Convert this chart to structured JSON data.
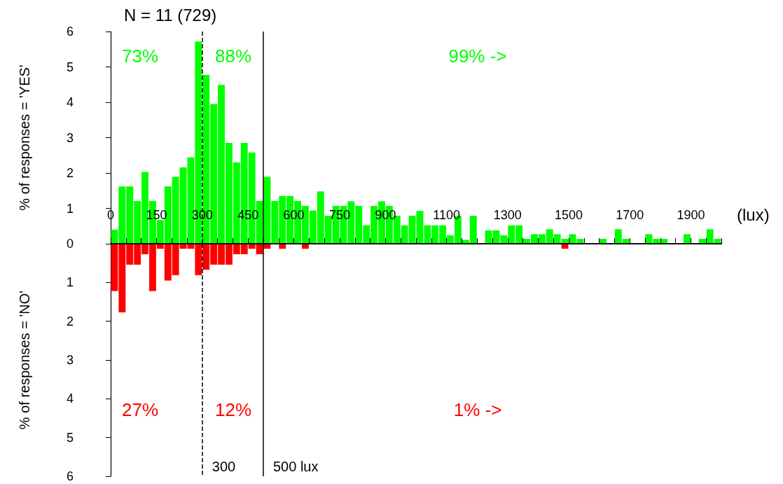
{
  "chart_data": [
    {
      "type": "histogram",
      "title": "N = 11 (729)",
      "ylabel": "% of responses = 'YES'",
      "xlabel": "(lux)",
      "bins": [
        0,
        25,
        50,
        75,
        100,
        125,
        150,
        175,
        200,
        225,
        250,
        275,
        300,
        325,
        350,
        375,
        400,
        425,
        450,
        475,
        500,
        525,
        550,
        575,
        600,
        625,
        650,
        675,
        700,
        725,
        750,
        775,
        800,
        825,
        850,
        875,
        900,
        925,
        950,
        975,
        1000,
        1025,
        1050,
        1075,
        1100,
        1125,
        1150,
        1175,
        1200,
        1225,
        1250,
        1275,
        1300,
        1325,
        1350,
        1375,
        1400,
        1425,
        1450,
        1475,
        1500,
        1525,
        1550,
        1575,
        1600,
        1625,
        1650,
        1675,
        1700,
        1725,
        1750,
        1775,
        1800,
        1825,
        1850,
        1875,
        1900,
        1925,
        1950,
        1975,
        2000
      ],
      "series": [
        {
          "color": "#00ff00",
          "values": [
            0.4,
            1.62,
            1.62,
            1.21,
            2.03,
            1.21,
            0.67,
            1.62,
            1.89,
            2.16,
            2.44,
            5.72,
            4.77,
            3.95,
            4.49,
            2.85,
            2.3,
            2.85,
            2.58,
            1.21,
            1.89,
            1.21,
            1.35,
            1.35,
            1.21,
            1.07,
            0.94,
            1.48,
            0.79,
            1.07,
            1.07,
            1.2,
            1.07,
            0.52,
            1.07,
            1.2,
            1.07,
            0.79,
            0.52,
            0.79,
            0.93,
            0.52,
            0.52,
            0.52,
            0.24,
            0.79,
            0.11,
            0.79,
            0,
            0.38,
            0.38,
            0.24,
            0.52,
            0.52,
            0.14,
            0.27,
            0.27,
            0.41,
            0.27,
            0.14,
            0.27,
            0.14,
            0,
            0,
            0.14,
            0,
            0.41,
            0.14,
            0,
            0,
            0.27,
            0.14,
            0.14,
            0,
            0,
            0.27,
            0,
            0.14,
            0.41,
            0.14
          ]
        }
      ],
      "xlim": [
        0,
        2000
      ],
      "xticks": [
        0,
        {
          "value": 50,
          "label": null
        },
        {
          "value": 100,
          "label": null
        },
        150,
        {
          "value": 200,
          "label": null
        },
        {
          "value": 250,
          "label": null
        },
        300,
        {
          "value": 350,
          "label": null
        },
        {
          "value": 400,
          "label": null
        },
        450,
        {
          "value": 500,
          "label": null
        },
        {
          "value": 550,
          "label": null
        },
        600,
        {
          "value": 650,
          "label": null
        },
        {
          "value": 700,
          "label": null
        },
        750,
        {
          "value": 800,
          "label": null
        },
        {
          "value": 850,
          "label": null
        },
        900,
        {
          "value": 950,
          "label": null
        },
        {
          "value": 1000,
          "label": null
        },
        {
          "value": 1050,
          "label": null
        },
        1100,
        {
          "value": 1150,
          "label": null
        },
        {
          "value": 1200,
          "label": null
        },
        {
          "value": 1250,
          "label": null
        },
        1300,
        {
          "value": 1350,
          "label": null
        },
        {
          "value": 1400,
          "label": null
        },
        {
          "value": 1450,
          "label": null
        },
        1500,
        {
          "value": 1550,
          "label": null
        },
        {
          "value": 1600,
          "label": null
        },
        {
          "value": 1650,
          "label": null
        },
        1700,
        {
          "value": 1750,
          "label": null
        },
        {
          "value": 1800,
          "label": null
        },
        {
          "value": 1850,
          "label": null
        },
        1900,
        {
          "value": 1950,
          "label": null
        },
        {
          "value": 2000,
          "label": null
        }
      ],
      "ylim": [
        0,
        6
      ],
      "yticks": [
        0,
        1,
        2,
        3,
        4,
        5,
        6
      ],
      "ref_lines": [
        {
          "axis": "x",
          "value": 300,
          "line_style": "dashed",
          "color": "#000000"
        },
        {
          "axis": "x",
          "value": 500,
          "line_style": "solid",
          "color": "#000000"
        }
      ],
      "annotations": [
        "73%",
        "88%",
        "99% ->"
      ]
    },
    {
      "type": "histogram",
      "ylabel": "% of responses = 'NO'",
      "tick_labels": "y",
      "bins": [
        0,
        25,
        50,
        75,
        100,
        125,
        150,
        175,
        200,
        225,
        250,
        275,
        300,
        325,
        350,
        375,
        400,
        425,
        450,
        475,
        500,
        525,
        550,
        575,
        600,
        625,
        650,
        675,
        700,
        725,
        750,
        775,
        800,
        825,
        850,
        875,
        900,
        925,
        950,
        975,
        1000,
        1025,
        1050,
        1075,
        1100,
        1125,
        1150,
        1175,
        1200,
        1225,
        1250,
        1275,
        1300,
        1325,
        1350,
        1375,
        1400,
        1425,
        1450,
        1475,
        1500,
        1525,
        1550,
        1575,
        1600,
        1625,
        1650,
        1675,
        1700,
        1725,
        1750,
        1775,
        1800,
        1825,
        1850,
        1875,
        1900,
        1925,
        1950,
        1975,
        2000
      ],
      "series": [
        {
          "color": "#ff0000",
          "values": [
            1.22,
            1.77,
            0.54,
            0.54,
            0.27,
            1.22,
            0.13,
            0.95,
            0.81,
            0.13,
            0.13,
            0.81,
            0.67,
            0.54,
            0.54,
            0.54,
            0.27,
            0.27,
            0.13,
            0.27,
            0.13,
            0,
            0.13,
            0,
            0,
            0.13,
            0,
            0,
            0,
            0,
            0,
            0,
            0,
            0,
            0,
            0,
            0,
            0,
            0,
            0,
            0,
            0,
            0,
            0,
            0,
            0,
            0,
            0,
            0,
            0,
            0,
            0,
            0,
            0,
            0,
            0,
            0,
            0,
            0,
            0.13,
            0,
            0,
            0,
            0,
            0,
            0,
            0,
            0,
            0,
            0,
            0,
            0,
            0,
            0,
            0,
            0,
            0,
            0,
            0,
            0
          ]
        }
      ],
      "xlim": [
        0,
        2000
      ],
      "ylim": [
        6,
        0
      ],
      "yticks": [
        1,
        2,
        3,
        4,
        5,
        6
      ],
      "ref_lines": [
        {
          "axis": "x",
          "value": 300,
          "label": "300",
          "line_style": "dashed",
          "color": "#000000"
        },
        {
          "axis": "x",
          "value": 500,
          "label": "500 lux",
          "line_style": "solid",
          "color": "#000000"
        }
      ],
      "annotations": [
        "27%",
        "12%",
        "1% ->"
      ]
    }
  ]
}
